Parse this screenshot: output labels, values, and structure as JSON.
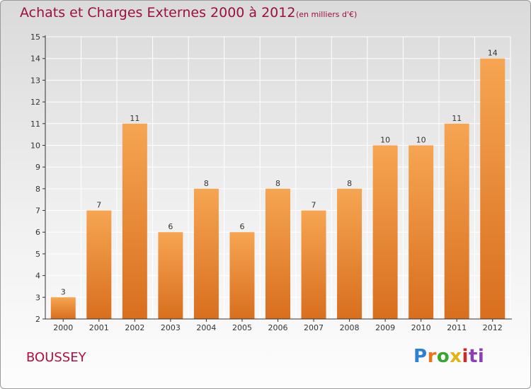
{
  "header": {
    "title": "Achats et Charges Externes 2000 à 2012",
    "unit": "(en milliers d'€)"
  },
  "commune": "BOUSSEY",
  "logo": {
    "text": "Proxiti",
    "letters": [
      "P",
      "r",
      "o",
      "x",
      "i",
      "ti"
    ]
  },
  "colors": {
    "bar_light": "#f6a552",
    "bar_dark": "#d86f1f",
    "title": "#9a1040",
    "axis": "#333333",
    "grid": "#ffffff"
  },
  "chart_data": {
    "type": "bar",
    "categories": [
      "2000",
      "2001",
      "2002",
      "2003",
      "2004",
      "2005",
      "2006",
      "2007",
      "2008",
      "2009",
      "2010",
      "2011",
      "2012"
    ],
    "values": [
      3,
      7,
      11,
      6,
      8,
      6,
      8,
      7,
      8,
      10,
      10,
      11,
      14
    ],
    "data_labels": [
      "3",
      "7",
      "11",
      "6",
      "8",
      "6",
      "8",
      "7",
      "8",
      "10",
      "10",
      "11",
      "14"
    ],
    "y_ticks": [
      "2",
      "3",
      "4",
      "5",
      "6",
      "7",
      "8",
      "9",
      "10",
      "11",
      "12",
      "13",
      "14",
      "15"
    ],
    "title": "Achats et Charges Externes 2000 à 2012",
    "xlabel": "",
    "ylabel": "",
    "ylim": [
      2,
      15
    ],
    "grid": true,
    "legend": "none"
  }
}
